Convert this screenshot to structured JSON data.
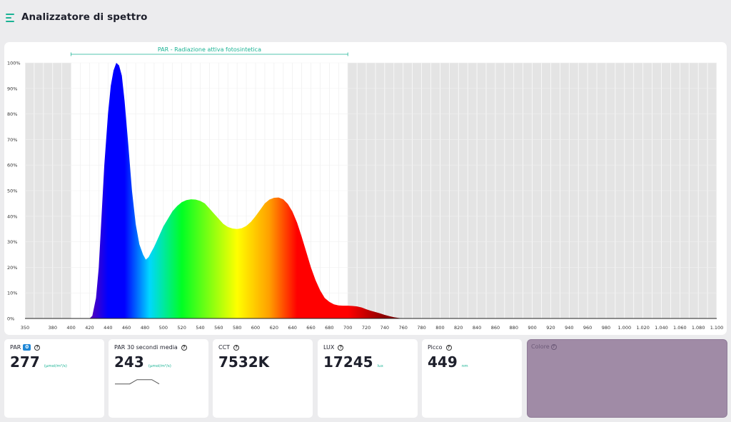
{
  "header": {
    "title": "Analizzatore di spettro",
    "menu_icon": "hamburger-menu-icon"
  },
  "chart_data": {
    "type": "area",
    "xlim": [
      350,
      1100
    ],
    "ylim": [
      0,
      100
    ],
    "x_tick_labels": [
      "350",
      "380",
      "400",
      "420",
      "440",
      "460",
      "480",
      "500",
      "520",
      "540",
      "560",
      "580",
      "600",
      "620",
      "640",
      "660",
      "680",
      "700",
      "720",
      "740",
      "760",
      "780",
      "800",
      "820",
      "840",
      "860",
      "880",
      "900",
      "920",
      "940",
      "960",
      "980",
      "1.000",
      "1.020",
      "1.040",
      "1.060",
      "1.080",
      "1.100"
    ],
    "y_tick_labels": [
      "0%",
      "10%",
      "20%",
      "30%",
      "40%",
      "50%",
      "60%",
      "70%",
      "80%",
      "90%",
      "100%"
    ],
    "par_range": {
      "label": "PAR - Radiazione attiva fotosintetica",
      "start": 400,
      "end": 700
    },
    "series": [
      {
        "x": [
          420,
          423,
          427,
          430,
          433,
          436,
          440,
          443,
          446,
          449,
          452,
          455,
          458,
          462,
          466,
          470,
          474,
          478,
          481,
          484,
          487,
          490,
          495,
          500,
          505,
          510,
          515,
          520,
          525,
          530,
          535,
          540,
          545,
          550,
          555,
          560,
          565,
          570,
          575,
          580,
          585,
          590,
          595,
          600,
          605,
          610,
          615,
          620,
          625,
          630,
          635,
          640,
          645,
          650,
          655,
          660,
          665,
          670,
          675,
          680,
          685,
          690,
          695,
          700,
          705,
          710,
          715,
          720,
          725,
          730,
          735,
          740,
          745,
          750,
          755,
          760,
          770
        ],
        "y": [
          0,
          1,
          8,
          20,
          40,
          60,
          80,
          91,
          97,
          100,
          99,
          95,
          85,
          68,
          50,
          37,
          29,
          25,
          23,
          24,
          26,
          28,
          32,
          36,
          39,
          42,
          44,
          45.5,
          46.3,
          46.6,
          46.5,
          46,
          45,
          43,
          41,
          39,
          37,
          35.8,
          35.2,
          35,
          35.3,
          36.2,
          37.8,
          40,
          42.5,
          45,
          46.5,
          47.2,
          47.3,
          46.6,
          44.8,
          41.8,
          37.5,
          32,
          26,
          20,
          15,
          11,
          8,
          6.5,
          5.5,
          5.1,
          5,
          5,
          4.9,
          4.7,
          4.3,
          3.6,
          3,
          2.5,
          2,
          1.4,
          0.9,
          0.5,
          0.2,
          0,
          0
        ]
      }
    ],
    "grid": true,
    "gradient_colors": {
      "violet": "#5a00b5",
      "blue": "#0000ff",
      "cyan": "#00d7ff",
      "green": "#00ff24",
      "yellow": "#ffff00",
      "orange": "#ff9f00",
      "red": "#ff0000",
      "dark_red": "#8b0000"
    }
  },
  "stats": {
    "par": {
      "label": "PAR",
      "badge": "0",
      "value": "277",
      "unit": "(µmol/m²/s)",
      "help_icon": "question-circle-icon"
    },
    "par30": {
      "label": "PAR 30 secondi media",
      "value": "243",
      "unit": "(µmol/m²/s)",
      "sparkline": [
        5,
        5,
        5,
        12,
        12,
        12,
        5
      ],
      "help_icon": "question-circle-icon"
    },
    "cct": {
      "label": "CCT",
      "value": "7532K",
      "help_icon": "question-circle-icon"
    },
    "lux": {
      "label": "LUX",
      "value": "17245",
      "unit": "lux",
      "help_icon": "question-circle-icon"
    },
    "peak": {
      "label": "Picco",
      "value": "449",
      "unit": "nm",
      "help_icon": "question-circle-icon"
    },
    "color": {
      "label": "Colore",
      "swatch": "#a08ba6",
      "help_icon": "question-circle-icon"
    }
  }
}
